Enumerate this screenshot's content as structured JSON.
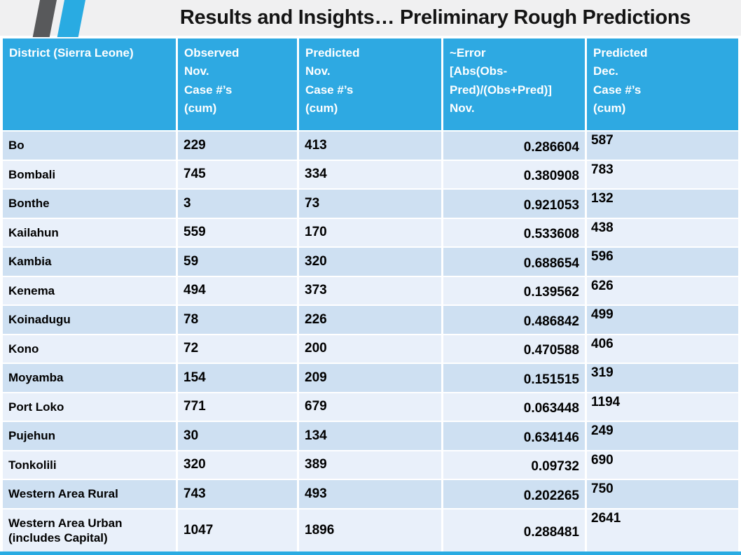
{
  "slide": {
    "title": "Results and Insights… Preliminary Rough Predictions"
  },
  "logo": {
    "stripe_dark_color": "#58595b",
    "stripe_blue_color": "#29abe2"
  },
  "colors": {
    "accent_blue": "#29abe2",
    "table_header_blue": "#2ea9e2",
    "row_odd": "#cee0f2",
    "row_even": "#e9f0fa",
    "band_gray": "#f0f0f1"
  },
  "table": {
    "columns": [
      {
        "id": "district",
        "label": "District (Sierra Leone)"
      },
      {
        "id": "observed",
        "label": "Observed\nNov.\nCase #’s\n(cum)"
      },
      {
        "id": "predicted_nov",
        "label": "Predicted\nNov.\nCase #’s\n(cum)"
      },
      {
        "id": "error",
        "label": "~Error\n[Abs(Obs-\nPred)/(Obs+Pred)]\nNov."
      },
      {
        "id": "predicted_dec",
        "label": "Predicted\nDec.\nCase #’s\n(cum)"
      }
    ],
    "rows": [
      {
        "district": "Bo",
        "observed": "229",
        "predicted_nov": "413",
        "error": "0.286604",
        "predicted_dec": "587"
      },
      {
        "district": "Bombali",
        "observed": "745",
        "predicted_nov": "334",
        "error": "0.380908",
        "predicted_dec": "783"
      },
      {
        "district": "Bonthe",
        "observed": "3",
        "predicted_nov": "73",
        "error": "0.921053",
        "predicted_dec": "132"
      },
      {
        "district": "Kailahun",
        "observed": "559",
        "predicted_nov": "170",
        "error": "0.533608",
        "predicted_dec": "438"
      },
      {
        "district": "Kambia",
        "observed": "59",
        "predicted_nov": "320",
        "error": "0.688654",
        "predicted_dec": "596"
      },
      {
        "district": "Kenema",
        "observed": "494",
        "predicted_nov": "373",
        "error": "0.139562",
        "predicted_dec": "626"
      },
      {
        "district": "Koinadugu",
        "observed": "78",
        "predicted_nov": "226",
        "error": "0.486842",
        "predicted_dec": "499"
      },
      {
        "district": "Kono",
        "observed": "72",
        "predicted_nov": "200",
        "error": "0.470588",
        "predicted_dec": "406"
      },
      {
        "district": "Moyamba",
        "observed": "154",
        "predicted_nov": "209",
        "error": "0.151515",
        "predicted_dec": "319"
      },
      {
        "district": "Port Loko",
        "observed": "771",
        "predicted_nov": "679",
        "error": "0.063448",
        "predicted_dec": "1194"
      },
      {
        "district": "Pujehun",
        "observed": "30",
        "predicted_nov": "134",
        "error": "0.634146",
        "predicted_dec": "249"
      },
      {
        "district": "Tonkolili",
        "observed": "320",
        "predicted_nov": "389",
        "error": "0.09732",
        "predicted_dec": "690"
      },
      {
        "district": "Western Area Rural",
        "observed": "743",
        "predicted_nov": "493",
        "error": "0.202265",
        "predicted_dec": "750"
      },
      {
        "district": "Western Area Urban (includes Capital)",
        "observed": "1047",
        "predicted_nov": "1896",
        "error": "0.288481",
        "predicted_dec": "2641"
      }
    ]
  }
}
